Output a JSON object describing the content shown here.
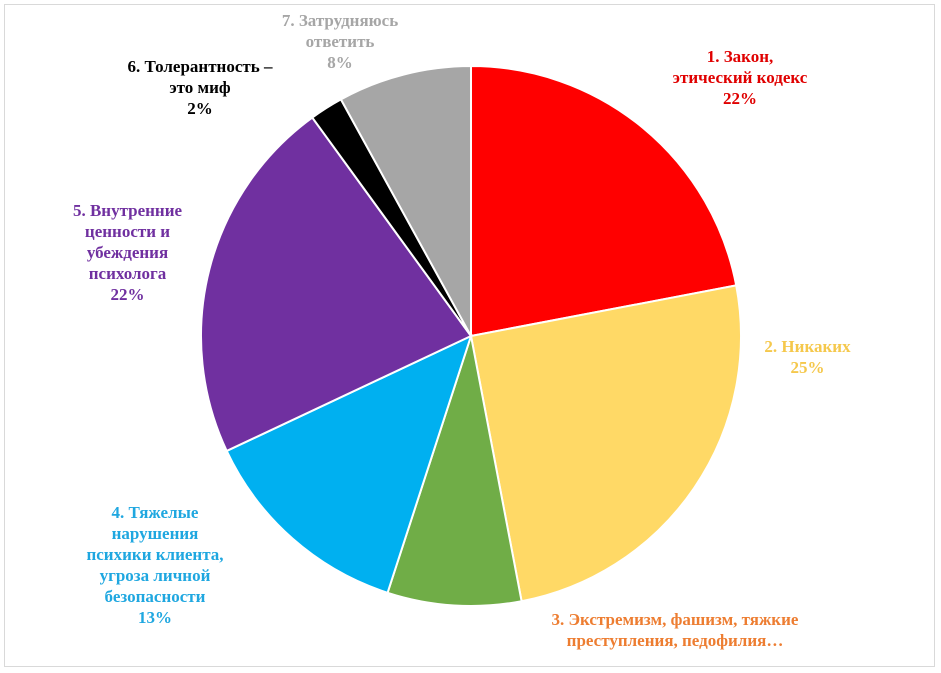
{
  "chart_data": {
    "type": "pie",
    "title": "",
    "slices": [
      {
        "name_lines": [
          "1. Закон,",
          "этический кодекс"
        ],
        "value": 22,
        "label": "22%",
        "color": "#ff0000",
        "label_color": "#e00000"
      },
      {
        "name_lines": [
          "2. Никаких"
        ],
        "value": 25,
        "label": "25%",
        "color": "#ffd966",
        "label_color": "#f5c84c"
      },
      {
        "name_lines": [
          "3. Экстремизм, фашизм, тяжкие",
          "преступления, педофилия…"
        ],
        "value": 8,
        "label": "",
        "color": "#70ad47",
        "label_color": "#ed7d31"
      },
      {
        "name_lines": [
          "4. Тяжелые",
          "нарушения",
          "психики клиента,",
          "угроза личной",
          "безопасности"
        ],
        "value": 13,
        "label": "13%",
        "color": "#00b0f0",
        "label_color": "#1fa7e0"
      },
      {
        "name_lines": [
          "5. Внутренние",
          "ценности и",
          "убеждения",
          "психолога"
        ],
        "value": 22,
        "label": "22%",
        "color": "#7030a0",
        "label_color": "#7030a0"
      },
      {
        "name_lines": [
          "6. Толерантность –",
          "это миф"
        ],
        "value": 2,
        "label": "2%",
        "color": "#000000",
        "label_color": "#000000"
      },
      {
        "name_lines": [
          "7. Затрудняюсь",
          "ответить"
        ],
        "value": 8,
        "label": "8%",
        "color": "#a6a6a6",
        "label_color": "#a6a6a6"
      }
    ]
  }
}
